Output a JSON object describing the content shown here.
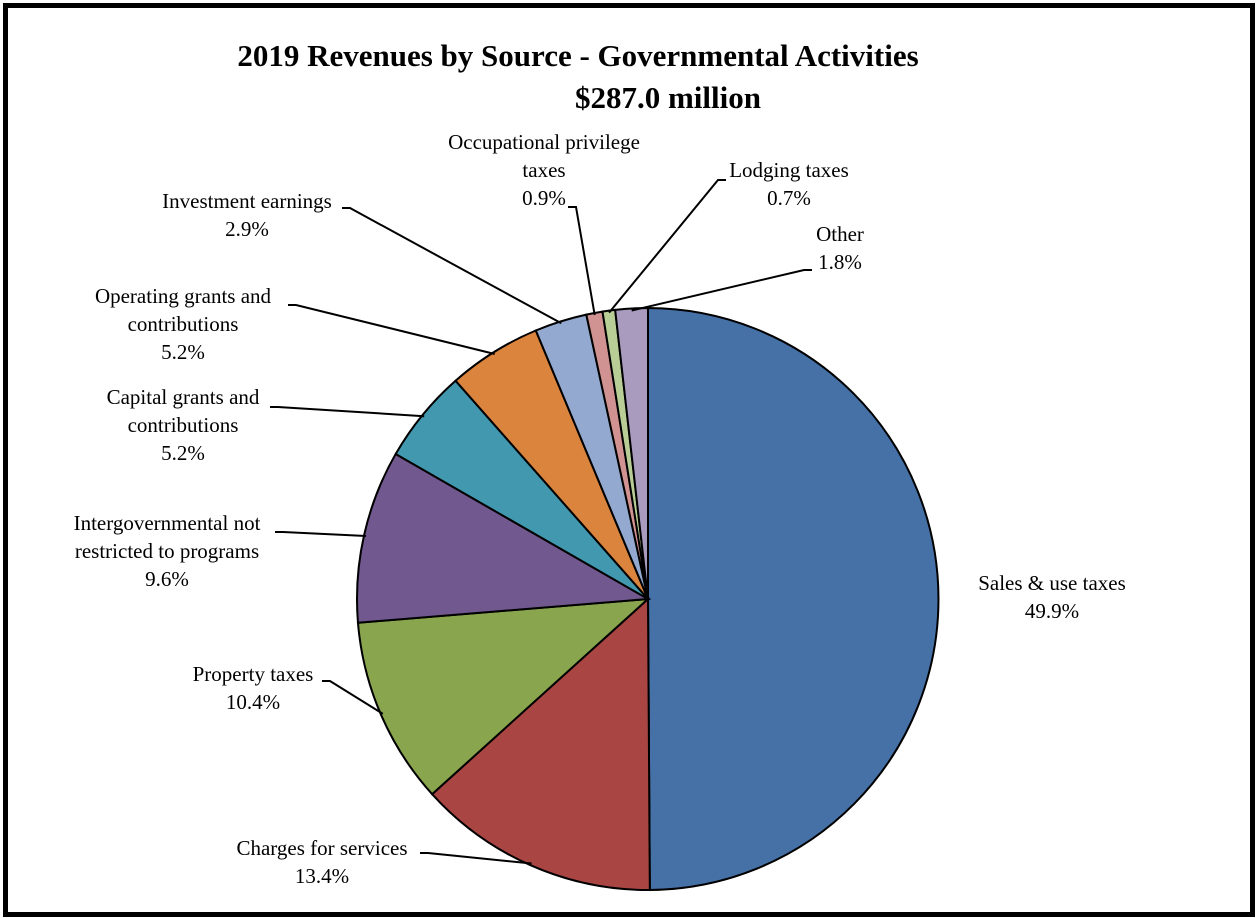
{
  "chart_data": {
    "type": "pie",
    "title": "2019 Revenues by Source - Governmental  Activities",
    "subtitle": "$287.0 million",
    "start_angle_deg": 0,
    "direction": "clockwise",
    "slices": [
      {
        "name": "Sales & use taxes",
        "label_lines": [
          "Sales & use taxes"
        ],
        "value": 49.9,
        "value_label": "49.9%",
        "color": "#4571A7"
      },
      {
        "name": "Charges for services",
        "label_lines": [
          "Charges for services"
        ],
        "value": 13.4,
        "value_label": "13.4%",
        "color": "#A94643"
      },
      {
        "name": "Property taxes",
        "label_lines": [
          "Property taxes"
        ],
        "value": 10.4,
        "value_label": "10.4%",
        "color": "#89A54E"
      },
      {
        "name": "Intergovernmental not restricted to programs",
        "label_lines": [
          "Intergovernmental not",
          "restricted to programs"
        ],
        "value": 9.6,
        "value_label": "9.6%",
        "color": "#71588F"
      },
      {
        "name": "Capital grants and contributions",
        "label_lines": [
          "Capital grants and",
          "contributions"
        ],
        "value": 5.2,
        "value_label": "5.2%",
        "color": "#4198AF"
      },
      {
        "name": "Operating grants and contributions",
        "label_lines": [
          "Operating grants and",
          "contributions"
        ],
        "value": 5.2,
        "value_label": "5.2%",
        "color": "#DB843D"
      },
      {
        "name": "Investment earnings",
        "label_lines": [
          "Investment  earnings"
        ],
        "value": 2.9,
        "value_label": "2.9%",
        "color": "#93A9CF"
      },
      {
        "name": "Occupational privilege taxes",
        "label_lines": [
          "Occupational privilege",
          "taxes"
        ],
        "value": 0.9,
        "value_label": "0.9%",
        "color": "#D19392"
      },
      {
        "name": "Lodging taxes",
        "label_lines": [
          "Lodging taxes"
        ],
        "value": 0.7,
        "value_label": "0.7%",
        "color": "#B9CD96"
      },
      {
        "name": "Other",
        "label_lines": [
          "Other"
        ],
        "value": 1.8,
        "value_label": "1.8%",
        "color": "#A99BBD"
      }
    ]
  }
}
